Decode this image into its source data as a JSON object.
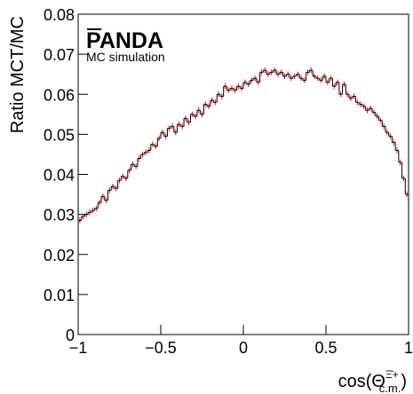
{
  "chart_data": {
    "type": "histogram",
    "ylabel": "Ratio MCT/MC",
    "xlabel": {
      "base": "cos(Θ",
      "sup": "Ξ̄+",
      "sub": "c.m.",
      "close": ")"
    },
    "annotations": {
      "experiment": "PANDA",
      "note": "MC simulation"
    },
    "line_color": "#000000",
    "error_color": "#ff0000",
    "bins": [
      -1,
      -0.98,
      -0.96,
      -0.94,
      -0.92,
      -0.9,
      -0.88,
      -0.86,
      -0.84,
      -0.82,
      -0.8,
      -0.78,
      -0.76,
      -0.74,
      -0.72,
      -0.7,
      -0.68,
      -0.66,
      -0.64,
      -0.62,
      -0.6,
      -0.58,
      -0.56,
      -0.54,
      -0.52,
      -0.5,
      -0.48,
      -0.46,
      -0.44,
      -0.42,
      -0.4,
      -0.38,
      -0.36,
      -0.34,
      -0.32,
      -0.3,
      -0.28,
      -0.26,
      -0.24,
      -0.22,
      -0.2,
      -0.18,
      -0.16,
      -0.14,
      -0.12,
      -0.1,
      -0.08,
      -0.06,
      -0.04,
      -0.02,
      0,
      0.02,
      0.04,
      0.06,
      0.08,
      0.1,
      0.12,
      0.14,
      0.16,
      0.18,
      0.2,
      0.22,
      0.24,
      0.26,
      0.28,
      0.3,
      0.32,
      0.34,
      0.36,
      0.38,
      0.4,
      0.42,
      0.44,
      0.46,
      0.48,
      0.5,
      0.52,
      0.54,
      0.56,
      0.58,
      0.6,
      0.62,
      0.64,
      0.66,
      0.68,
      0.7,
      0.72,
      0.74,
      0.76,
      0.78,
      0.8,
      0.82,
      0.84,
      0.86,
      0.88,
      0.9,
      0.92,
      0.94,
      0.96,
      0.98,
      1
    ],
    "values": [
      0.0285,
      0.0295,
      0.03,
      0.0305,
      0.031,
      0.0315,
      0.033,
      0.0345,
      0.0335,
      0.036,
      0.037,
      0.0365,
      0.0385,
      0.0395,
      0.039,
      0.041,
      0.0425,
      0.042,
      0.044,
      0.045,
      0.0455,
      0.046,
      0.0475,
      0.047,
      0.049,
      0.0505,
      0.0495,
      0.0515,
      0.052,
      0.0505,
      0.0525,
      0.052,
      0.054,
      0.053,
      0.055,
      0.0545,
      0.056,
      0.055,
      0.0575,
      0.057,
      0.0585,
      0.058,
      0.06,
      0.0595,
      0.062,
      0.061,
      0.0615,
      0.061,
      0.062,
      0.0615,
      0.063,
      0.0625,
      0.0635,
      0.064,
      0.063,
      0.0655,
      0.066,
      0.065,
      0.0655,
      0.066,
      0.065,
      0.0655,
      0.0645,
      0.065,
      0.064,
      0.0645,
      0.065,
      0.064,
      0.0635,
      0.0655,
      0.066,
      0.0645,
      0.064,
      0.0635,
      0.0645,
      0.063,
      0.064,
      0.062,
      0.063,
      0.06,
      0.0625,
      0.06,
      0.059,
      0.0595,
      0.058,
      0.0575,
      0.057,
      0.056,
      0.0565,
      0.0555,
      0.0545,
      0.0535,
      0.052,
      0.0505,
      0.0495,
      0.048,
      0.046,
      0.043,
      0.039,
      0.035
    ],
    "errors": [
      0.0007,
      0.0007,
      0.0007,
      0.0007,
      0.0007,
      0.0007,
      0.0007,
      0.0007,
      0.0007,
      0.0007,
      0.0007,
      0.0007,
      0.0007,
      0.0007,
      0.0007,
      0.0007,
      0.0007,
      0.0007,
      0.0007,
      0.0007,
      0.0007,
      0.0007,
      0.0007,
      0.0007,
      0.0007,
      0.0007,
      0.0007,
      0.0007,
      0.0007,
      0.0007,
      0.0007,
      0.0007,
      0.0007,
      0.0007,
      0.0007,
      0.0007,
      0.0007,
      0.0007,
      0.0007,
      0.0007,
      0.0007,
      0.0007,
      0.0007,
      0.0007,
      0.0007,
      0.0007,
      0.0007,
      0.0007,
      0.0007,
      0.0007,
      0.0007,
      0.0007,
      0.0007,
      0.0007,
      0.0007,
      0.0007,
      0.0007,
      0.0007,
      0.0007,
      0.0007,
      0.0007,
      0.0007,
      0.0007,
      0.0007,
      0.0007,
      0.0007,
      0.0007,
      0.0007,
      0.0007,
      0.0007,
      0.0007,
      0.0007,
      0.0007,
      0.0007,
      0.0007,
      0.0007,
      0.0007,
      0.0007,
      0.0007,
      0.0007,
      0.0007,
      0.0007,
      0.0007,
      0.0007,
      0.0007,
      0.0007,
      0.0007,
      0.0007,
      0.0007,
      0.0007,
      0.0007,
      0.0007,
      0.0007,
      0.0007,
      0.0007,
      0.0007,
      0.0007,
      0.0007,
      0.0007,
      0.0007
    ],
    "xlim": [
      -1,
      1
    ],
    "xticks": [
      {
        "value": -1,
        "label": "−1"
      },
      {
        "value": -0.5,
        "label": "−0.5"
      },
      0,
      0.5,
      1
    ],
    "ylim": [
      0,
      0.08
    ],
    "yticks": [
      0,
      0.01,
      0.02,
      0.03,
      0.04,
      0.05,
      0.06,
      0.07,
      0.08
    ]
  }
}
